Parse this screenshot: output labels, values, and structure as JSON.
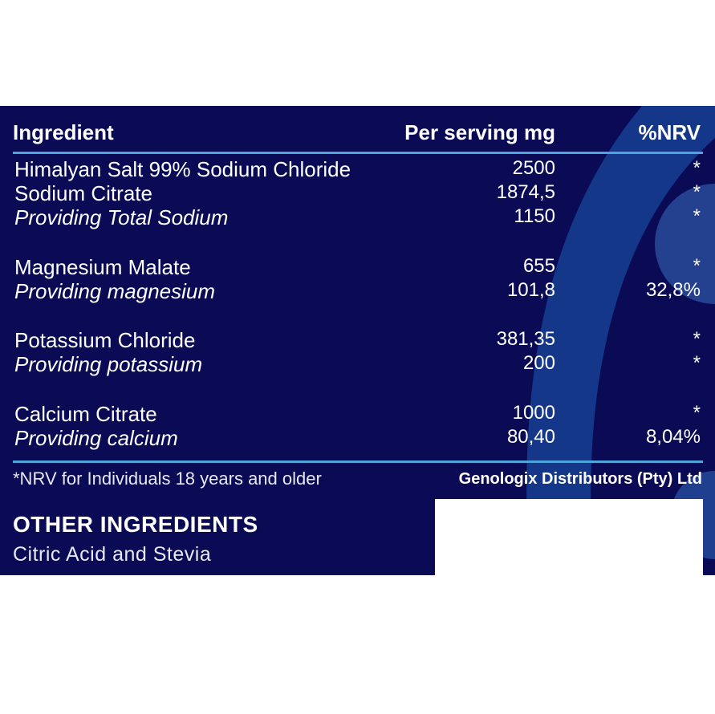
{
  "table": {
    "headers": {
      "ingredient": "Ingredient",
      "per_serving": "Per serving mg",
      "nrv": "%NRV"
    },
    "rows": [
      {
        "name": "Himalyan Salt 99% Sodium Chloride",
        "value": "2500",
        "nrv": "*",
        "italic": false
      },
      {
        "name": "Sodium Citrate",
        "value": "1874,5",
        "nrv": "*",
        "italic": false
      },
      {
        "name": "Providing Total Sodium",
        "value": "1150",
        "nrv": "*",
        "italic": true
      },
      {
        "name": "Magnesium Malate",
        "value": "655",
        "nrv": "*",
        "italic": false
      },
      {
        "name": "Providing magnesium",
        "value": "101,8",
        "nrv": "32,8%",
        "italic": true
      },
      {
        "name": "Potassium Chloride",
        "value": "381,35",
        "nrv": "*",
        "italic": false
      },
      {
        "name": "Providing potassium",
        "value": "200",
        "nrv": "*",
        "italic": true
      },
      {
        "name": "Calcium Citrate",
        "value": "1000",
        "nrv": "*",
        "italic": false
      },
      {
        "name": "Providing calcium",
        "value": "80,40",
        "nrv": "8,04%",
        "italic": true
      }
    ]
  },
  "footnote": "*NRV for Individuals 18 years and older",
  "company": "Genologix Distributors (Pty) Ltd",
  "other_ingredients": {
    "title": "OTHER INGREDIENTS",
    "list": "Citric Acid and Stevia"
  },
  "colors": {
    "background": "#0a0a55",
    "accent_rule": "#4ea3dc",
    "decor_blue": "#1f5aa8",
    "text": "#ffffff"
  }
}
